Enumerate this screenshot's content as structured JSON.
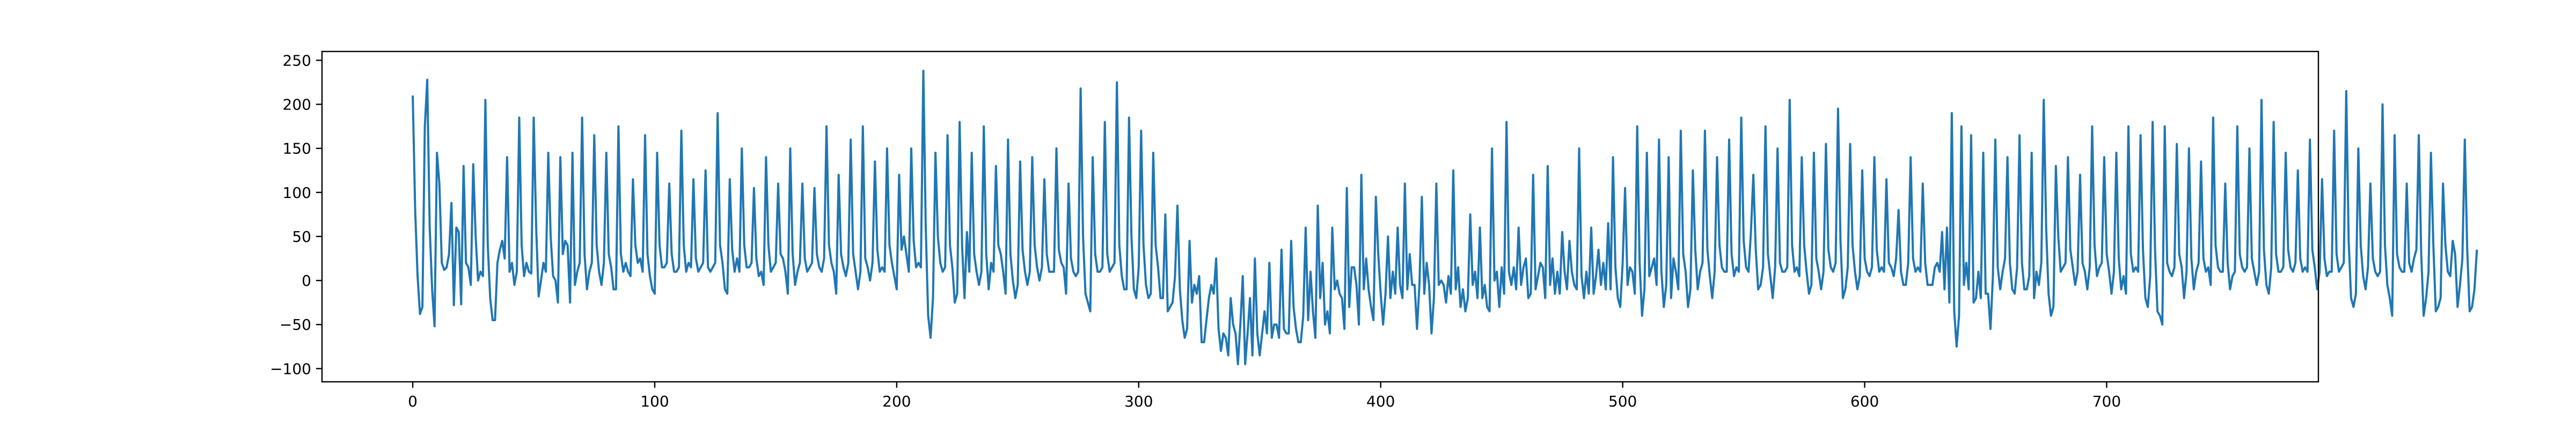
{
  "chart_data": {
    "type": "line",
    "title": "",
    "xlabel": "",
    "ylabel": "",
    "xlim": [
      -37.5,
      787.5
    ],
    "ylim": [
      -115,
      260
    ],
    "xticks": [
      0,
      100,
      200,
      300,
      400,
      500,
      600,
      700
    ],
    "yticks": [
      -100,
      -50,
      0,
      50,
      100,
      150,
      200,
      250
    ],
    "grid": false,
    "legend": "none",
    "series": [
      {
        "color": "#1f77b4",
        "x_start": 0,
        "x_step": 1,
        "y": [
          210,
          80,
          5,
          -38,
          -30,
          175,
          228,
          60,
          -10,
          -52,
          145,
          110,
          20,
          12,
          15,
          30,
          88,
          -28,
          60,
          55,
          -27,
          130,
          20,
          15,
          -5,
          132,
          50,
          0,
          10,
          5,
          205,
          40,
          -20,
          -45,
          -45,
          20,
          35,
          45,
          25,
          140,
          10,
          20,
          -5,
          10,
          185,
          40,
          5,
          20,
          10,
          8,
          185,
          60,
          -18,
          0,
          20,
          10,
          145,
          50,
          5,
          0,
          -25,
          140,
          30,
          45,
          40,
          -25,
          145,
          -5,
          10,
          20,
          185,
          30,
          -10,
          10,
          20,
          165,
          40,
          10,
          -5,
          20,
          145,
          30,
          15,
          -10,
          -10,
          175,
          30,
          10,
          20,
          10,
          5,
          115,
          40,
          20,
          25,
          10,
          165,
          30,
          5,
          -10,
          -15,
          145,
          40,
          15,
          15,
          20,
          110,
          30,
          10,
          10,
          15,
          170,
          40,
          10,
          20,
          15,
          115,
          25,
          10,
          15,
          20,
          125,
          15,
          10,
          15,
          20,
          190,
          40,
          20,
          -10,
          -15,
          115,
          35,
          10,
          25,
          10,
          150,
          40,
          15,
          15,
          20,
          105,
          25,
          5,
          10,
          -5,
          140,
          40,
          10,
          15,
          20,
          110,
          30,
          25,
          10,
          -15,
          150,
          30,
          -5,
          10,
          20,
          110,
          25,
          10,
          15,
          20,
          105,
          30,
          15,
          10,
          25,
          175,
          40,
          20,
          10,
          -15,
          120,
          30,
          15,
          5,
          20,
          160,
          30,
          10,
          -10,
          10,
          175,
          25,
          15,
          0,
          20,
          135,
          35,
          10,
          15,
          10,
          150,
          40,
          20,
          5,
          -10,
          120,
          35,
          50,
          30,
          10,
          150,
          45,
          15,
          20,
          15,
          238,
          60,
          -40,
          -65,
          -20,
          145,
          50,
          20,
          10,
          15,
          165,
          40,
          15,
          -25,
          -15,
          180,
          40,
          -20,
          55,
          10,
          145,
          30,
          10,
          -5,
          10,
          175,
          30,
          -10,
          20,
          10,
          130,
          40,
          30,
          10,
          -15,
          160,
          30,
          0,
          -20,
          -5,
          135,
          35,
          10,
          -5,
          10,
          140,
          40,
          15,
          0,
          15,
          115,
          30,
          10,
          10,
          10,
          150,
          35,
          20,
          15,
          -15,
          110,
          25,
          10,
          5,
          10,
          218,
          50,
          -15,
          -25,
          -35,
          140,
          30,
          10,
          10,
          15,
          180,
          30,
          10,
          15,
          20,
          225,
          40,
          5,
          -10,
          -10,
          185,
          50,
          -10,
          -20,
          15,
          170,
          40,
          -5,
          -20,
          -15,
          145,
          40,
          15,
          -20,
          -20,
          75,
          -35,
          -30,
          -25,
          5,
          85,
          -10,
          -45,
          -65,
          -55,
          45,
          -25,
          -5,
          -15,
          5,
          -70,
          -70,
          -45,
          -20,
          -5,
          -15,
          25,
          -55,
          -80,
          -60,
          -65,
          -85,
          -20,
          -50,
          -60,
          -95,
          -50,
          5,
          -95,
          -60,
          -20,
          -85,
          25,
          -60,
          -85,
          -60,
          -35,
          -60,
          20,
          -65,
          -50,
          -50,
          -65,
          35,
          -55,
          -60,
          -60,
          45,
          -30,
          -55,
          -70,
          -70,
          -40,
          60,
          -45,
          10,
          -35,
          -65,
          85,
          -20,
          20,
          -50,
          -35,
          -60,
          60,
          -10,
          0,
          -15,
          -20,
          -55,
          105,
          -30,
          15,
          15,
          -5,
          -50,
          120,
          -10,
          25,
          -10,
          -30,
          -45,
          95,
          30,
          -15,
          -50,
          -15,
          50,
          -20,
          10,
          -15,
          60,
          -5,
          -20,
          110,
          -10,
          30,
          -5,
          -5,
          -55,
          -5,
          95,
          -15,
          20,
          -5,
          -60,
          -20,
          110,
          -5,
          0,
          -5,
          -25,
          5,
          -15,
          125,
          -10,
          15,
          -30,
          -10,
          -35,
          -20,
          75,
          -5,
          10,
          -20,
          60,
          -20,
          -5,
          -30,
          -35,
          150,
          0,
          10,
          -30,
          15,
          -15,
          180,
          10,
          -5,
          15,
          -10,
          60,
          -5,
          15,
          25,
          -20,
          -15,
          120,
          -10,
          5,
          20,
          15,
          -20,
          130,
          -5,
          25,
          -15,
          10,
          -15,
          55,
          10,
          -10,
          45,
          10,
          -5,
          -10,
          150,
          5,
          -20,
          10,
          -15,
          60,
          -15,
          5,
          35,
          -5,
          20,
          -10,
          65,
          -10,
          140,
          15,
          -20,
          -30,
          20,
          105,
          -5,
          15,
          10,
          -15,
          175,
          20,
          -40,
          -10,
          145,
          5,
          15,
          25,
          -5,
          160,
          10,
          -30,
          -5,
          140,
          -20,
          25,
          10,
          -10,
          170,
          30,
          10,
          -30,
          -10,
          125,
          35,
          -10,
          10,
          20,
          170,
          35,
          5,
          -20,
          10,
          140,
          40,
          15,
          10,
          10,
          160,
          30,
          5,
          15,
          10,
          185,
          45,
          15,
          10,
          55,
          120,
          35,
          -10,
          -5,
          15,
          175,
          30,
          5,
          -20,
          15,
          150,
          20,
          10,
          10,
          15,
          205,
          40,
          10,
          15,
          5,
          140,
          40,
          10,
          -15,
          -5,
          145,
          25,
          10,
          -10,
          10,
          155,
          35,
          15,
          10,
          20,
          195,
          45,
          -20,
          -10,
          15,
          155,
          40,
          10,
          -10,
          5,
          125,
          25,
          10,
          5,
          15,
          140,
          35,
          10,
          15,
          10,
          115,
          20,
          15,
          5,
          25,
          80,
          10,
          -5,
          -5,
          20,
          140,
          25,
          10,
          15,
          10,
          110,
          20,
          -5,
          -5,
          -5,
          15,
          20,
          10,
          55,
          -10,
          60,
          -25,
          190,
          -35,
          -75,
          -40,
          175,
          -5,
          20,
          -10,
          165,
          -25,
          -20,
          10,
          -20,
          145,
          -15,
          -15,
          -55,
          5,
          160,
          15,
          -10,
          10,
          25,
          140,
          20,
          -10,
          -15,
          15,
          165,
          20,
          -10,
          -10,
          5,
          145,
          -20,
          10,
          -5,
          20,
          205,
          60,
          -15,
          -40,
          -30,
          130,
          50,
          10,
          15,
          20,
          140,
          35,
          15,
          -5,
          10,
          120,
          20,
          10,
          -10,
          15,
          175,
          40,
          5,
          15,
          20,
          140,
          30,
          10,
          -15,
          10,
          145,
          25,
          -10,
          5,
          -15,
          175,
          30,
          10,
          15,
          10,
          165,
          35,
          -20,
          -30,
          5,
          180,
          35,
          -35,
          -40,
          -50,
          175,
          20,
          10,
          5,
          15,
          155,
          30,
          15,
          -20,
          10,
          150,
          25,
          -10,
          10,
          20,
          135,
          25,
          10,
          15,
          -5,
          185,
          40,
          15,
          10,
          10,
          110,
          20,
          -10,
          5,
          10,
          175,
          30,
          15,
          10,
          15,
          150,
          25,
          10,
          -5,
          10,
          205,
          35,
          -5,
          -15,
          15,
          180,
          30,
          10,
          10,
          15,
          145,
          35,
          15,
          10,
          20,
          125,
          25,
          10,
          15,
          10,
          160,
          35,
          15,
          -10,
          10,
          115,
          25,
          5,
          10,
          10,
          170,
          30,
          10,
          15,
          20,
          215,
          45,
          -20,
          -30,
          -15,
          150,
          40,
          5,
          -10,
          15,
          110,
          25,
          10,
          5,
          10,
          200,
          40,
          -5,
          -20,
          -40,
          165,
          30,
          15,
          10,
          10,
          110,
          20,
          10,
          25,
          35,
          165,
          30,
          -40,
          -20,
          10,
          145,
          40,
          -35,
          -30,
          -20,
          110,
          40,
          10,
          5,
          45,
          30,
          -30,
          -5,
          25,
          160,
          35,
          -35,
          -30,
          -10,
          35
        ]
      }
    ]
  }
}
